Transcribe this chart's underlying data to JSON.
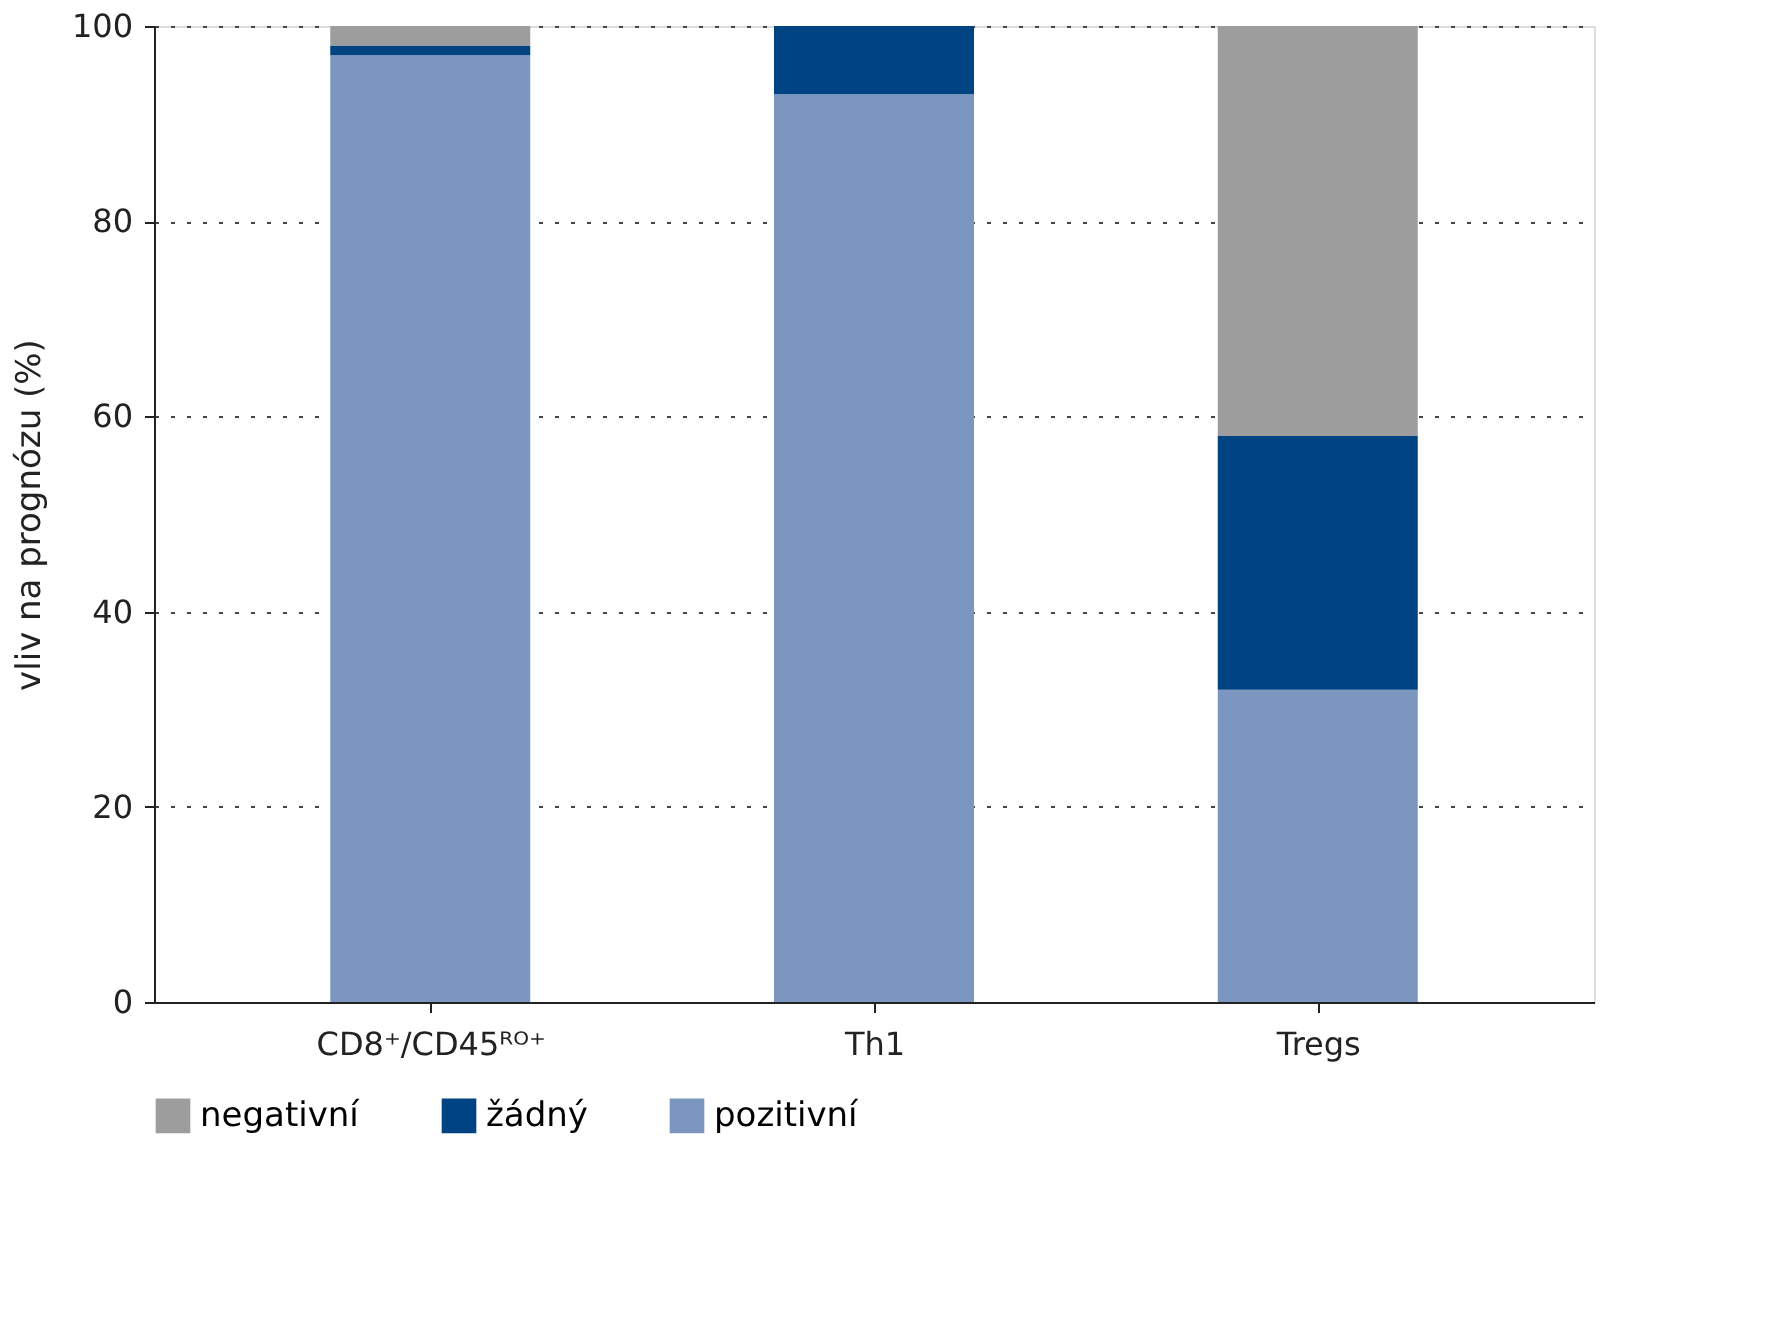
{
  "chart_data": {
    "type": "bar",
    "stacked": true,
    "ylabel": "vliv na prognózu (%)",
    "categories": [
      "CD8⁺/CD45ᴿᴼ⁺",
      "Th1",
      "Tregs"
    ],
    "series": [
      {
        "name": "pozitivní",
        "color": "#7b96bf",
        "values": [
          97,
          93,
          32
        ]
      },
      {
        "name": "žádný",
        "color": "#004383",
        "values": [
          1,
          7,
          26
        ]
      },
      {
        "name": "negativní",
        "color": "#9d9d9d",
        "values": [
          2,
          0,
          42
        ]
      }
    ],
    "ylim": [
      0,
      100
    ],
    "yticks": [
      0,
      20,
      40,
      60,
      80,
      100
    ],
    "grid": "y",
    "legend": "bottom"
  }
}
